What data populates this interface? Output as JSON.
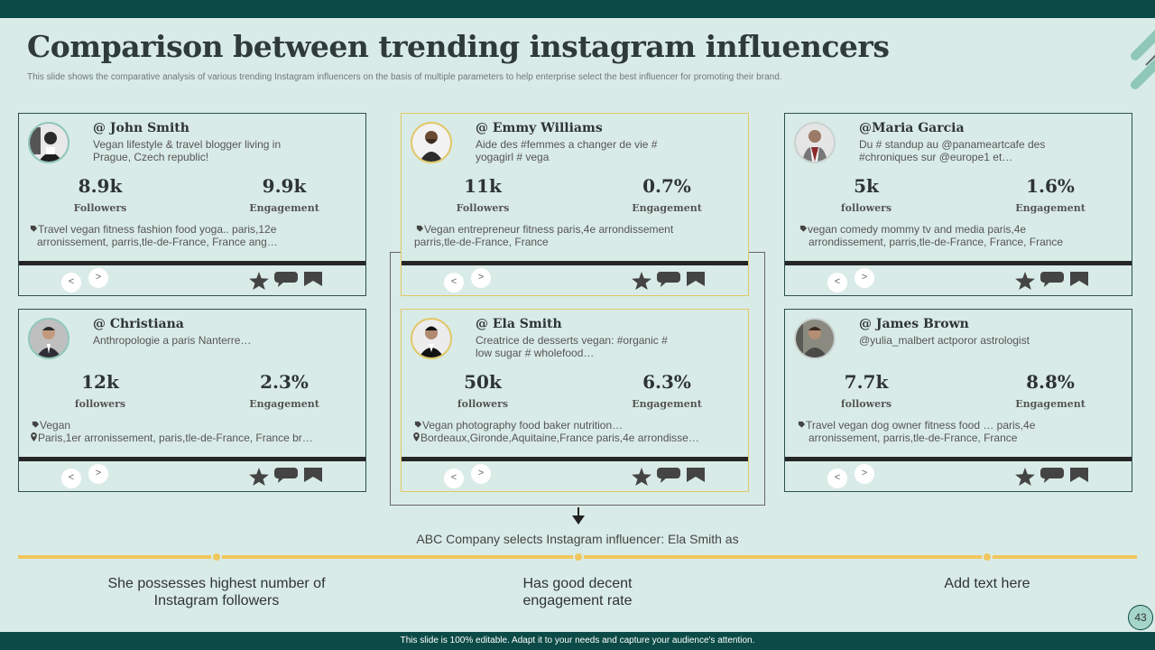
{
  "title": "Comparison between trending instagram influencers",
  "subtitle": "This slide shows the comparative analysis of various trending Instagram influencers on the basis of multiple  parameters to help enterprise select the best influencer for promoting their brand.",
  "nav": {
    "prev": "<",
    "next": ">"
  },
  "cards": [
    {
      "handle": "@ John Smith",
      "bio": "Vegan lifestyle & travel blogger living in Prague, Czech republic!",
      "followers_value": "8.9k",
      "followers_label": "Followers",
      "engagement_value": "9.9k",
      "engagement_label": "Engagement",
      "tag_line1": "Travel vegan fitness fashion food yoga.. paris,12e",
      "tag_line2": "arronissement, parris,tle-de-France, France ang…"
    },
    {
      "handle": "@ Emmy Williams",
      "bio": "Aide des #femmes a changer de vie # yogagirl # vega",
      "followers_value": "11k",
      "followers_label": "Followers",
      "engagement_value": "0.7%",
      "engagement_label": "Engagement",
      "tag_line1": "Vegan entrepreneur fitness paris,4e arrondissement",
      "tag_line2": "parris,tle-de-France, France"
    },
    {
      "handle": "@Maria Garcia",
      "bio": "Du # standup au @panameartcafe des #chroniques sur @europe1 et…",
      "followers_value": "5k",
      "followers_label": "followers",
      "engagement_value": "1.6%",
      "engagement_label": "Engagement",
      "tag_line1": "vegan comedy mommy tv and media paris,4e",
      "tag_line2": "arrondissement, parris,tle-de-France, France, France"
    },
    {
      "handle": "@ Christiana",
      "bio": "Anthropologie a paris Nanterre…",
      "followers_value": "12k",
      "followers_label": "followers",
      "engagement_value": "2.3%",
      "engagement_label": "Engagement",
      "tag_line1": "Vegan",
      "tag_line2": "Paris,1er arronissement, paris,tle-de-France, France br…"
    },
    {
      "handle": "@ Ela Smith",
      "bio": "Creatrice de desserts vegan: #organic # low sugar # wholefood…",
      "followers_value": "50k",
      "followers_label": "followers",
      "engagement_value": "6.3%",
      "engagement_label": "Engagement",
      "tag_line1": "Vegan photography food baker nutrition…",
      "tag_line2": "Bordeaux,Gironde,Aquitaine,France paris,4e arrondisse…"
    },
    {
      "handle": "@ James Brown",
      "bio": "@yulia_malbert  actporor astrologist",
      "followers_value": "7.7k",
      "followers_label": "followers",
      "engagement_value": "8.8%",
      "engagement_label": "Engagement",
      "tag_line1": "Travel vegan dog owner fitness food … paris,4e",
      "tag_line2": "arronissement, parris,tle-de-France, France"
    }
  ],
  "selection_caption": "ABC Company selects Instagram influencer: Ela Smith as",
  "points": [
    "She possesses highest number  of Instagram followers",
    "Has good decent engagement rate",
    "Add text here"
  ],
  "page_number": "43",
  "footer": "This slide is 100% editable.  Adapt it to your needs and capture your audience's attention.",
  "colors": {
    "dark_teal": "#0b4a47",
    "background": "#d9ebe7",
    "gold": "#e2c866",
    "timeline": "#f0c75e"
  },
  "icons": [
    "tag-icon",
    "location-pin-icon",
    "star-icon",
    "chat-icon",
    "bookmark-icon"
  ]
}
